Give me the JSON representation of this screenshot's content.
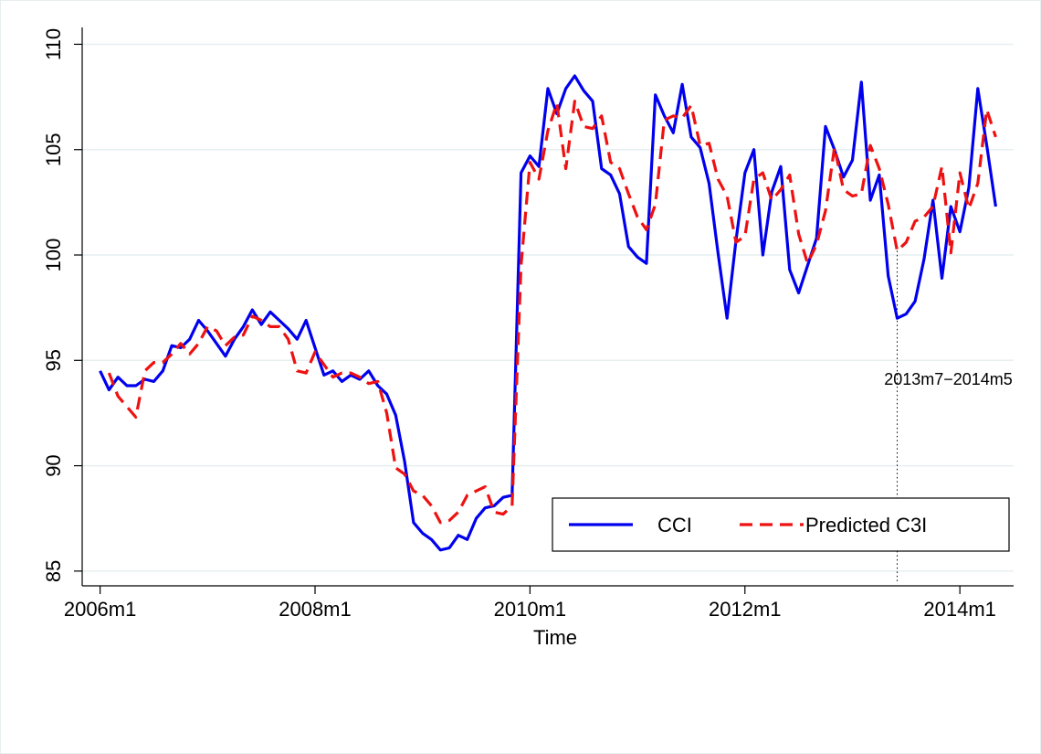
{
  "chart_data": {
    "type": "line",
    "x_label": "Time",
    "x": [
      "2006m1",
      "2006m2",
      "2006m3",
      "2006m4",
      "2006m5",
      "2006m6",
      "2006m7",
      "2006m8",
      "2006m9",
      "2006m10",
      "2006m11",
      "2006m12",
      "2007m1",
      "2007m2",
      "2007m3",
      "2007m4",
      "2007m5",
      "2007m6",
      "2007m7",
      "2007m8",
      "2007m9",
      "2007m10",
      "2007m11",
      "2007m12",
      "2008m1",
      "2008m2",
      "2008m3",
      "2008m4",
      "2008m5",
      "2008m6",
      "2008m7",
      "2008m8",
      "2008m9",
      "2008m10",
      "2008m11",
      "2008m12",
      "2009m1",
      "2009m2",
      "2009m3",
      "2009m4",
      "2009m5",
      "2009m6",
      "2009m7",
      "2009m8",
      "2009m9",
      "2009m10",
      "2009m11",
      "2009m12",
      "2010m1",
      "2010m2",
      "2010m3",
      "2010m4",
      "2010m5",
      "2010m6",
      "2010m7",
      "2010m8",
      "2010m9",
      "2010m10",
      "2010m11",
      "2010m12",
      "2011m1",
      "2011m2",
      "2011m3",
      "2011m4",
      "2011m5",
      "2011m6",
      "2011m7",
      "2011m8",
      "2011m9",
      "2011m10",
      "2011m11",
      "2011m12",
      "2012m1",
      "2012m2",
      "2012m3",
      "2012m4",
      "2012m5",
      "2012m6",
      "2012m7",
      "2012m8",
      "2012m9",
      "2012m10",
      "2012m11",
      "2012m12",
      "2013m1",
      "2013m2",
      "2013m3",
      "2013m4",
      "2013m5",
      "2013m6",
      "2013m7",
      "2013m8",
      "2013m9",
      "2013m10",
      "2013m11",
      "2013m12",
      "2014m1",
      "2014m2",
      "2014m3",
      "2014m4",
      "2014m5"
    ],
    "series": [
      {
        "name": "CCI",
        "color": "#0000ee",
        "dash": false,
        "values": [
          94.5,
          93.6,
          94.2,
          93.8,
          93.8,
          94.1,
          94.0,
          94.5,
          95.7,
          95.6,
          96.0,
          96.9,
          96.4,
          95.8,
          95.2,
          96.0,
          96.6,
          97.4,
          96.7,
          97.3,
          96.9,
          96.5,
          96.0,
          96.9,
          95.6,
          94.3,
          94.5,
          94.0,
          94.3,
          94.1,
          94.5,
          93.8,
          93.4,
          92.4,
          90.2,
          87.3,
          86.8,
          86.5,
          86.0,
          86.1,
          86.7,
          86.5,
          87.5,
          88.0,
          88.1,
          88.5,
          88.6,
          103.9,
          104.7,
          104.2,
          107.9,
          106.7,
          107.9,
          108.5,
          107.8,
          107.3,
          104.1,
          103.8,
          102.9,
          100.4,
          99.9,
          99.6,
          107.6,
          106.6,
          105.8,
          108.1,
          105.6,
          105.1,
          103.4,
          100.1,
          97.0,
          100.7,
          103.9,
          105.0,
          100.0,
          103.0,
          104.2,
          99.3,
          98.2,
          99.5,
          100.8,
          106.1,
          105.0,
          103.7,
          104.5,
          108.2,
          102.6,
          103.8,
          99.0,
          97.0,
          97.2,
          97.8,
          99.8,
          102.6,
          98.9,
          102.3,
          101.1,
          103.2,
          107.9,
          105.2,
          102.3
        ]
      },
      {
        "name": "Predicted C3I",
        "color": "#ee1111",
        "dash": true,
        "values": [
          null,
          94.4,
          93.3,
          92.8,
          92.3,
          94.5,
          94.9,
          94.9,
          95.3,
          95.8,
          95.3,
          95.8,
          96.6,
          96.4,
          95.7,
          96.1,
          96.2,
          97.1,
          96.9,
          96.6,
          96.6,
          96.0,
          94.5,
          94.4,
          95.4,
          94.8,
          94.2,
          94.4,
          94.4,
          94.2,
          93.9,
          94.0,
          92.5,
          89.9,
          89.6,
          88.8,
          88.6,
          88.1,
          87.3,
          87.4,
          87.8,
          88.6,
          88.8,
          89.0,
          87.8,
          87.7,
          88.1,
          99.5,
          104.4,
          103.6,
          105.9,
          107.2,
          104.1,
          107.3,
          106.1,
          106.0,
          106.6,
          104.4,
          104.1,
          102.9,
          101.8,
          101.2,
          102.4,
          106.4,
          106.6,
          106.5,
          107.1,
          105.2,
          105.3,
          103.6,
          102.8,
          100.6,
          100.9,
          103.6,
          103.9,
          102.6,
          103.1,
          103.8,
          101.0,
          99.6,
          100.5,
          102.1,
          105.1,
          103.1,
          102.8,
          102.9,
          105.2,
          104.1,
          102.4,
          100.2,
          100.6,
          101.6,
          101.8,
          102.3,
          104.2,
          100.1,
          103.9,
          102.2,
          103.4,
          106.9,
          105.6
        ]
      }
    ],
    "xlim": [
      "2005m11",
      "2014m7"
    ],
    "xticks": [
      "2006m1",
      "2008m1",
      "2010m1",
      "2012m1",
      "2014m1"
    ],
    "ylim": [
      84.3,
      110.8
    ],
    "yticks": [
      85,
      90,
      95,
      100,
      105,
      110
    ],
    "grid": true,
    "legend": "lower right",
    "annotation": {
      "text": "2013m7−2014m5",
      "x": "2013m6"
    }
  }
}
